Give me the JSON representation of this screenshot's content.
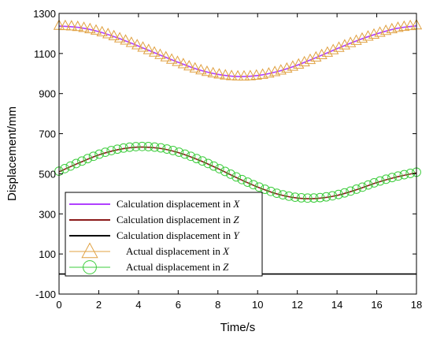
{
  "chart_data": {
    "type": "line",
    "xlabel": "Time/s",
    "ylabel": "Displacement/mm",
    "xlim": [
      0,
      18
    ],
    "ylim": [
      -100,
      1300
    ],
    "xticks": [
      0,
      2,
      4,
      6,
      8,
      10,
      12,
      14,
      16,
      18
    ],
    "yticks": [
      -100,
      100,
      300,
      500,
      700,
      900,
      1100,
      1300
    ],
    "grid": false,
    "legend_position": "lower-left",
    "series": [
      {
        "name": "Calculation displacement in X",
        "name_prefix": "Calculation displacement in ",
        "name_axis": "X",
        "kind": "line",
        "color": "#b040ff",
        "x": [
          0,
          1,
          2,
          3,
          4,
          5,
          6,
          7,
          8,
          9,
          10,
          11,
          12,
          13,
          14,
          15,
          16,
          17,
          18
        ],
        "y": [
          1237,
          1230,
          1209,
          1176,
          1137,
          1096,
          1056,
          1020,
          996,
          985,
          990,
          1010,
          1042,
          1082,
          1124,
          1164,
          1198,
          1225,
          1238
        ]
      },
      {
        "name": "Calculation displacement in Z",
        "name_prefix": "Calculation displacement in ",
        "name_axis": "Z",
        "kind": "line",
        "color": "#8b1a1a",
        "x": [
          0,
          1,
          2,
          3,
          4,
          5,
          6,
          7,
          8,
          9,
          10,
          11,
          12,
          13,
          14,
          15,
          16,
          17,
          18
        ],
        "y": [
          510,
          554,
          594,
          621,
          633,
          628,
          606,
          570,
          526,
          478,
          434,
          399,
          379,
          377,
          392,
          421,
          456,
          484,
          505
        ]
      },
      {
        "name": "Calculation displacement in Y",
        "name_prefix": "Calculation displacement in ",
        "name_axis": "Y",
        "kind": "line",
        "color": "#000000",
        "x": [
          0,
          18
        ],
        "y": [
          0,
          0
        ]
      },
      {
        "name": "Actual displacement in X",
        "name_prefix": "Actual displacement in ",
        "name_axis": "X",
        "kind": "marker",
        "marker": "triangle",
        "color": "#e0a040",
        "x": [
          0,
          1,
          2,
          3,
          4,
          5,
          6,
          7,
          8,
          9,
          10,
          11,
          12,
          13,
          14,
          15,
          16,
          17,
          18
        ],
        "y": [
          1240,
          1233,
          1212,
          1179,
          1140,
          1098,
          1058,
          1022,
          998,
          987,
          992,
          1012,
          1044,
          1084,
          1126,
          1166,
          1200,
          1228,
          1242
        ]
      },
      {
        "name": "Actual displacement in Z",
        "name_prefix": "Actual displacement in ",
        "name_axis": "Z",
        "kind": "marker",
        "marker": "circle",
        "color": "#3ccc3c",
        "x": [
          0,
          1,
          2,
          3,
          4,
          5,
          6,
          7,
          8,
          9,
          10,
          11,
          12,
          13,
          14,
          15,
          16,
          17,
          18
        ],
        "y": [
          513,
          557,
          597,
          624,
          636,
          631,
          609,
          573,
          529,
          481,
          437,
          402,
          382,
          380,
          395,
          424,
          459,
          487,
          508
        ]
      }
    ]
  }
}
